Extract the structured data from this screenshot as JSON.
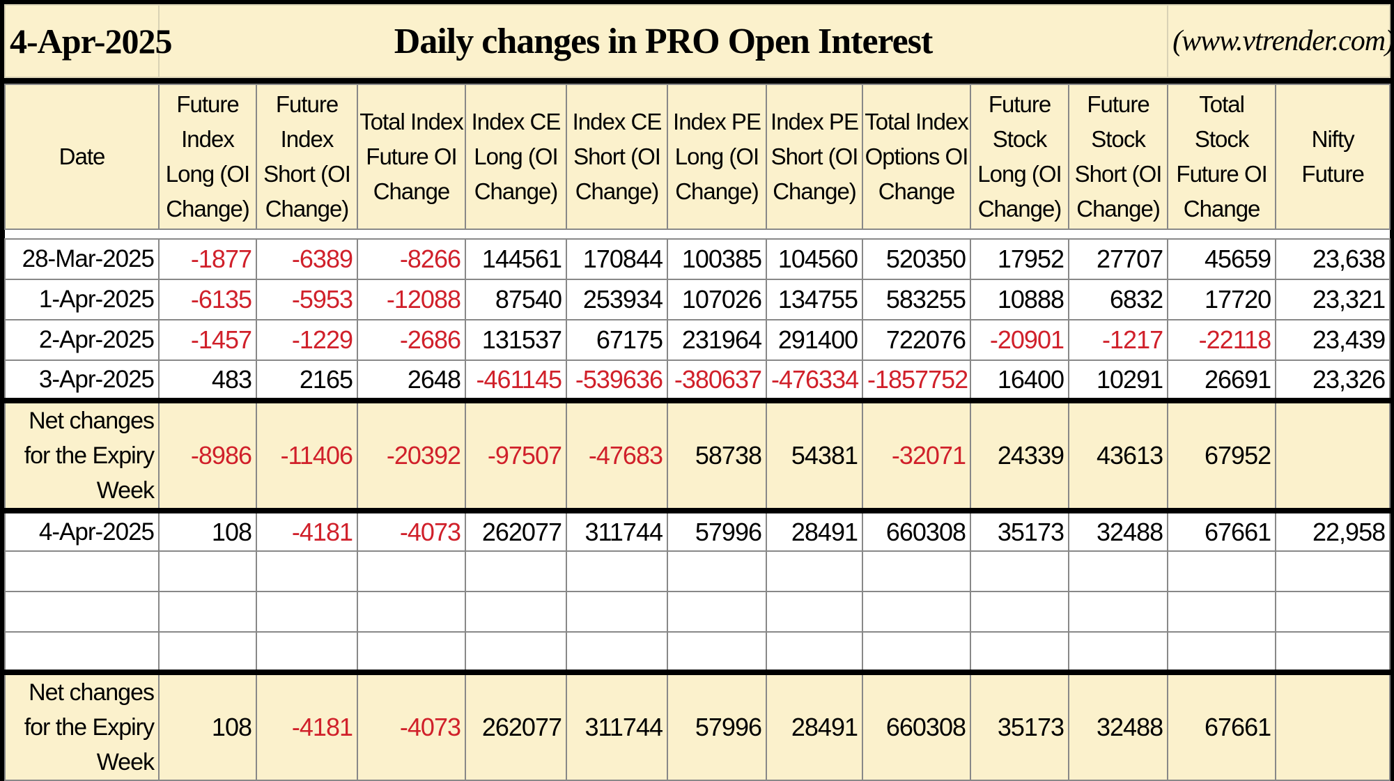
{
  "header": {
    "date": "4-Apr-2025",
    "title": "Daily changes in PRO Open Interest",
    "site": "(www.vtrender.com)"
  },
  "columns": [
    "Date",
    "Future Index Long (OI Change)",
    "Future Index Short (OI Change)",
    "Total Index Future OI Change",
    "Index CE Long (OI Change)",
    "Index CE Short (OI Change)",
    "Index PE Long (OI Change)",
    "Index PE Short (OI Change)",
    "Total Index Options OI Change",
    "Future Stock Long (OI Change)",
    "Future Stock Short (OI Change)",
    "Total Stock Future OI Change",
    "Nifty Future"
  ],
  "rows": [
    {
      "date": "28-Mar-2025",
      "values": [
        "-1877",
        "-6389",
        "-8266",
        "144561",
        "170844",
        "100385",
        "104560",
        "520350",
        "17952",
        "27707",
        "45659",
        "23,638"
      ]
    },
    {
      "date": "1-Apr-2025",
      "values": [
        "-6135",
        "-5953",
        "-12088",
        "87540",
        "253934",
        "107026",
        "134755",
        "583255",
        "10888",
        "6832",
        "17720",
        "23,321"
      ]
    },
    {
      "date": "2-Apr-2025",
      "values": [
        "-1457",
        "-1229",
        "-2686",
        "131537",
        "67175",
        "231964",
        "291400",
        "722076",
        "-20901",
        "-1217",
        "-22118",
        "23,439"
      ]
    },
    {
      "date": "3-Apr-2025",
      "values": [
        "483",
        "2165",
        "2648",
        "-461145",
        "-539636",
        "-380637",
        "-476334",
        "-1857752",
        "16400",
        "10291",
        "26691",
        "23,326"
      ]
    }
  ],
  "net1": {
    "label": "Net changes for the Expiry Week",
    "values": [
      "-8986",
      "-11406",
      "-20392",
      "-97507",
      "-47683",
      "58738",
      "54381",
      "-32071",
      "24339",
      "43613",
      "67952",
      ""
    ]
  },
  "current": {
    "date": "4-Apr-2025",
    "values": [
      "108",
      "-4181",
      "-4073",
      "262077",
      "311744",
      "57996",
      "28491",
      "660308",
      "35173",
      "32488",
      "67661",
      "22,958"
    ]
  },
  "net2": {
    "label": "Net changes for the Expiry Week",
    "values": [
      "108",
      "-4181",
      "-4073",
      "262077",
      "311744",
      "57996",
      "28491",
      "660308",
      "35173",
      "32488",
      "67661",
      ""
    ]
  },
  "colors": {
    "negative": "#d0202a",
    "highlight": "#fbf1cc"
  }
}
